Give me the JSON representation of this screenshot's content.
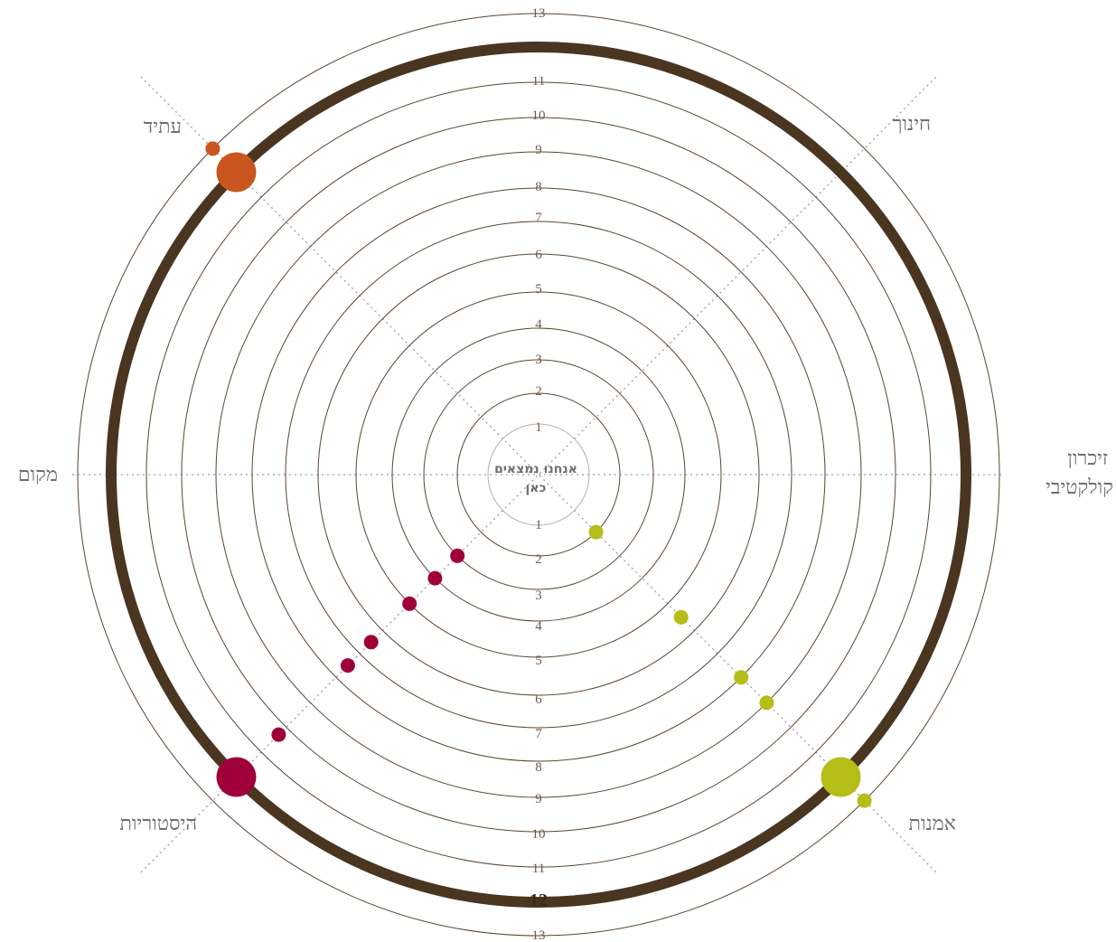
{
  "center_label": [
    "אנחנו נמצאים",
    "כאן"
  ],
  "rings": {
    "upper_labels": [
      "1",
      "2",
      "3",
      "4",
      "5",
      "6",
      "7",
      "8",
      "9",
      "10",
      "11",
      "13"
    ],
    "lower_labels": [
      "1",
      "2",
      "3",
      "4",
      "5",
      "6",
      "7",
      "8",
      "9",
      "10",
      "11",
      "12",
      "13"
    ]
  },
  "categories": [
    {
      "id": "education",
      "label": "חינוך"
    },
    {
      "id": "collective-memory",
      "label": [
        "זיכרון",
        "קולקטיבי"
      ]
    },
    {
      "id": "art",
      "label": "אמנות"
    },
    {
      "id": "histories",
      "label": "היסטוריות"
    },
    {
      "id": "place",
      "label": "מקום"
    },
    {
      "id": "future",
      "label": "עתיד"
    }
  ],
  "colors": {
    "ring": "#5a4530",
    "main_ring": "#4a3520",
    "axis": "#9a9aaa",
    "future": "#c8561e",
    "histories": "#a0003a",
    "art": "#b5bd17"
  },
  "chart_data": {
    "type": "radial",
    "ring_scale_max": 13,
    "highlighted_ring": 12,
    "series": [
      {
        "name": "עתיד",
        "direction": "upper-left",
        "color": "#c8561e",
        "points": [
          {
            "value": 12,
            "size": "large"
          },
          {
            "value": 13,
            "size": "small"
          }
        ]
      },
      {
        "name": "היסטוריות",
        "direction": "lower-left",
        "color": "#a0003a",
        "points": [
          {
            "value": 2,
            "size": "small"
          },
          {
            "value": 3,
            "size": "small"
          },
          {
            "value": 4,
            "size": "small"
          },
          {
            "value": 5.5,
            "size": "small"
          },
          {
            "value": 6.5,
            "size": "small"
          },
          {
            "value": 9.3,
            "size": "small"
          },
          {
            "value": 12,
            "size": "large"
          }
        ]
      },
      {
        "name": "אמנות",
        "direction": "lower-right",
        "color": "#b5bd17",
        "points": [
          {
            "value": 1,
            "size": "small"
          },
          {
            "value": 4.5,
            "size": "small"
          },
          {
            "value": 7,
            "size": "small"
          },
          {
            "value": 8,
            "size": "small"
          },
          {
            "value": 12,
            "size": "large"
          },
          {
            "value": 13,
            "size": "small"
          }
        ]
      }
    ]
  }
}
